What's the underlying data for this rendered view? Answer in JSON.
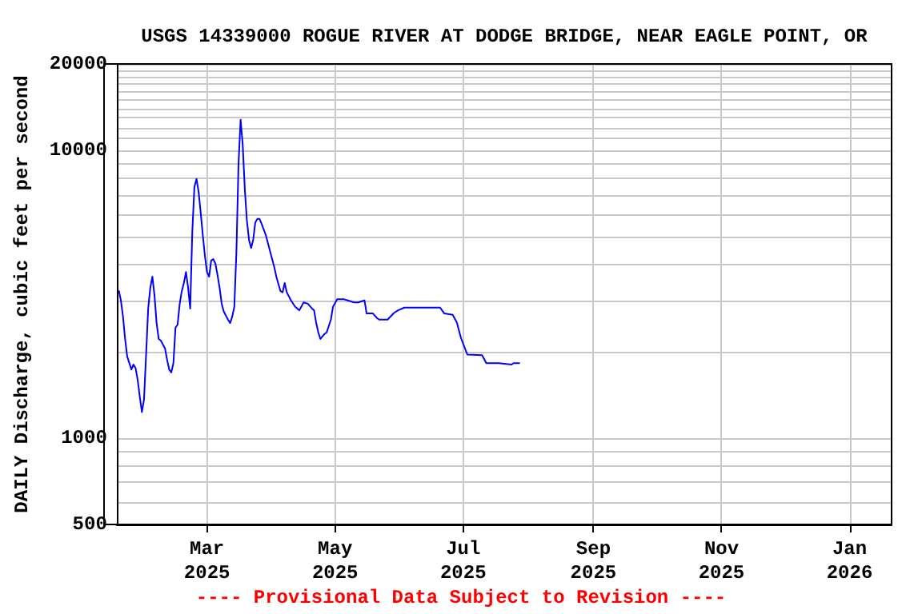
{
  "chart_data": {
    "type": "line",
    "title": "USGS 14339000 ROGUE RIVER AT DODGE BRIDGE, NEAR EAGLE POINT, OR",
    "ylabel": "DAILY Discharge, cubic feet per second",
    "annotations": [
      "---- Provisional Data Subject to Revision ----"
    ],
    "x": [
      "2025-01-18",
      "2025-01-19",
      "2025-01-20",
      "2025-01-21",
      "2025-01-22",
      "2025-01-24",
      "2025-01-25",
      "2025-01-26",
      "2025-01-27",
      "2025-01-28",
      "2025-01-29",
      "2025-01-30",
      "2025-01-31",
      "2025-02-01",
      "2025-02-02",
      "2025-02-03",
      "2025-02-04",
      "2025-02-05",
      "2025-02-06",
      "2025-02-07",
      "2025-02-09",
      "2025-02-10",
      "2025-02-11",
      "2025-02-12",
      "2025-02-13",
      "2025-02-14",
      "2025-02-15",
      "2025-02-16",
      "2025-02-17",
      "2025-02-18",
      "2025-02-19",
      "2025-02-20",
      "2025-02-21",
      "2025-02-22",
      "2025-02-23",
      "2025-02-24",
      "2025-02-25",
      "2025-02-26",
      "2025-02-27",
      "2025-02-28",
      "2025-03-01",
      "2025-03-02",
      "2025-03-03",
      "2025-03-04",
      "2025-03-05",
      "2025-03-06",
      "2025-03-07",
      "2025-03-08",
      "2025-03-09",
      "2025-03-11",
      "2025-03-12",
      "2025-03-13",
      "2025-03-14",
      "2025-03-15",
      "2025-03-16",
      "2025-03-17",
      "2025-03-18",
      "2025-03-19",
      "2025-03-20",
      "2025-03-21",
      "2025-03-22",
      "2025-03-23",
      "2025-03-24",
      "2025-03-25",
      "2025-03-26",
      "2025-03-27",
      "2025-03-29",
      "2025-03-31",
      "2025-04-02",
      "2025-04-03",
      "2025-04-05",
      "2025-04-06",
      "2025-04-07",
      "2025-04-08",
      "2025-04-10",
      "2025-04-12",
      "2025-04-14",
      "2025-04-16",
      "2025-04-18",
      "2025-04-20",
      "2025-04-21",
      "2025-04-22",
      "2025-04-23",
      "2025-04-24",
      "2025-04-26",
      "2025-04-27",
      "2025-04-29",
      "2025-04-30",
      "2025-05-02",
      "2025-05-05",
      "2025-05-07",
      "2025-05-10",
      "2025-05-12",
      "2025-05-15",
      "2025-05-16",
      "2025-05-19",
      "2025-05-21",
      "2025-05-22",
      "2025-05-26",
      "2025-05-29",
      "2025-05-31",
      "2025-06-03",
      "2025-06-10",
      "2025-06-20",
      "2025-06-22",
      "2025-06-26",
      "2025-06-28",
      "2025-06-30",
      "2025-07-03",
      "2025-07-10",
      "2025-07-12",
      "2025-07-18",
      "2025-07-24",
      "2025-07-25",
      "2025-07-28"
    ],
    "series": [
      {
        "color": "#0000ff",
        "values": [
          3260,
          3010,
          2640,
          2210,
          1920,
          1730,
          1800,
          1750,
          1590,
          1390,
          1230,
          1360,
          1950,
          2820,
          3330,
          3640,
          3130,
          2510,
          2210,
          2180,
          2050,
          1870,
          1730,
          1690,
          1820,
          2420,
          2480,
          2930,
          3240,
          3460,
          3780,
          3330,
          2820,
          5210,
          7460,
          7960,
          7180,
          6080,
          5080,
          4300,
          3780,
          3640,
          4140,
          4190,
          4040,
          3690,
          3330,
          2930,
          2750,
          2580,
          2510,
          2640,
          2860,
          4420,
          8930,
          12800,
          10500,
          7360,
          5700,
          4890,
          4580,
          4890,
          5620,
          5780,
          5780,
          5560,
          5080,
          4470,
          3940,
          3640,
          3240,
          3210,
          3460,
          3210,
          3010,
          2860,
          2780,
          2960,
          2930,
          2820,
          2780,
          2510,
          2330,
          2210,
          2300,
          2330,
          2580,
          2860,
          3040,
          3040,
          3010,
          2960,
          2960,
          3010,
          2710,
          2710,
          2610,
          2580,
          2580,
          2720,
          2780,
          2840,
          2840,
          2840,
          2710,
          2680,
          2520,
          2220,
          1950,
          1940,
          1820,
          1820,
          1800,
          1820,
          1820
        ]
      }
    ],
    "log": "y",
    "ylim": [
      500,
      20000
    ],
    "yticks": [
      500,
      {
        "value": 600,
        "label": null
      },
      {
        "value": 700,
        "label": null
      },
      {
        "value": 800,
        "label": null
      },
      {
        "value": 900,
        "label": null
      },
      1000,
      {
        "value": 2000,
        "label": null
      },
      {
        "value": 3000,
        "label": null
      },
      {
        "value": 4000,
        "label": null
      },
      {
        "value": 5000,
        "label": null
      },
      {
        "value": 6000,
        "label": null
      },
      {
        "value": 7000,
        "label": null
      },
      {
        "value": 8000,
        "label": null
      },
      {
        "value": 9000,
        "label": null
      },
      10000,
      {
        "value": 11000,
        "label": null
      },
      {
        "value": 12000,
        "label": null
      },
      {
        "value": 13000,
        "label": null
      },
      {
        "value": 14000,
        "label": null
      },
      {
        "value": 15000,
        "label": null
      },
      {
        "value": 16000,
        "label": null
      },
      {
        "value": 17000,
        "label": null
      },
      {
        "value": 18000,
        "label": null
      },
      {
        "value": 19000,
        "label": null
      },
      20000
    ],
    "xlim": [
      "2025-01-17",
      "2026-01-21"
    ],
    "xticks": [
      {
        "value": "2025-03-01",
        "label": "Mar\n2025"
      },
      {
        "value": "2025-05-01",
        "label": "May\n2025"
      },
      {
        "value": "2025-07-01",
        "label": "Jul\n2025"
      },
      {
        "value": "2025-09-01",
        "label": "Sep\n2025"
      },
      {
        "value": "2025-11-01",
        "label": "Nov\n2025"
      },
      {
        "value": "2026-01-01",
        "label": "Jan\n2026"
      }
    ],
    "grid": true,
    "marker": "none",
    "line_style": "solid"
  }
}
